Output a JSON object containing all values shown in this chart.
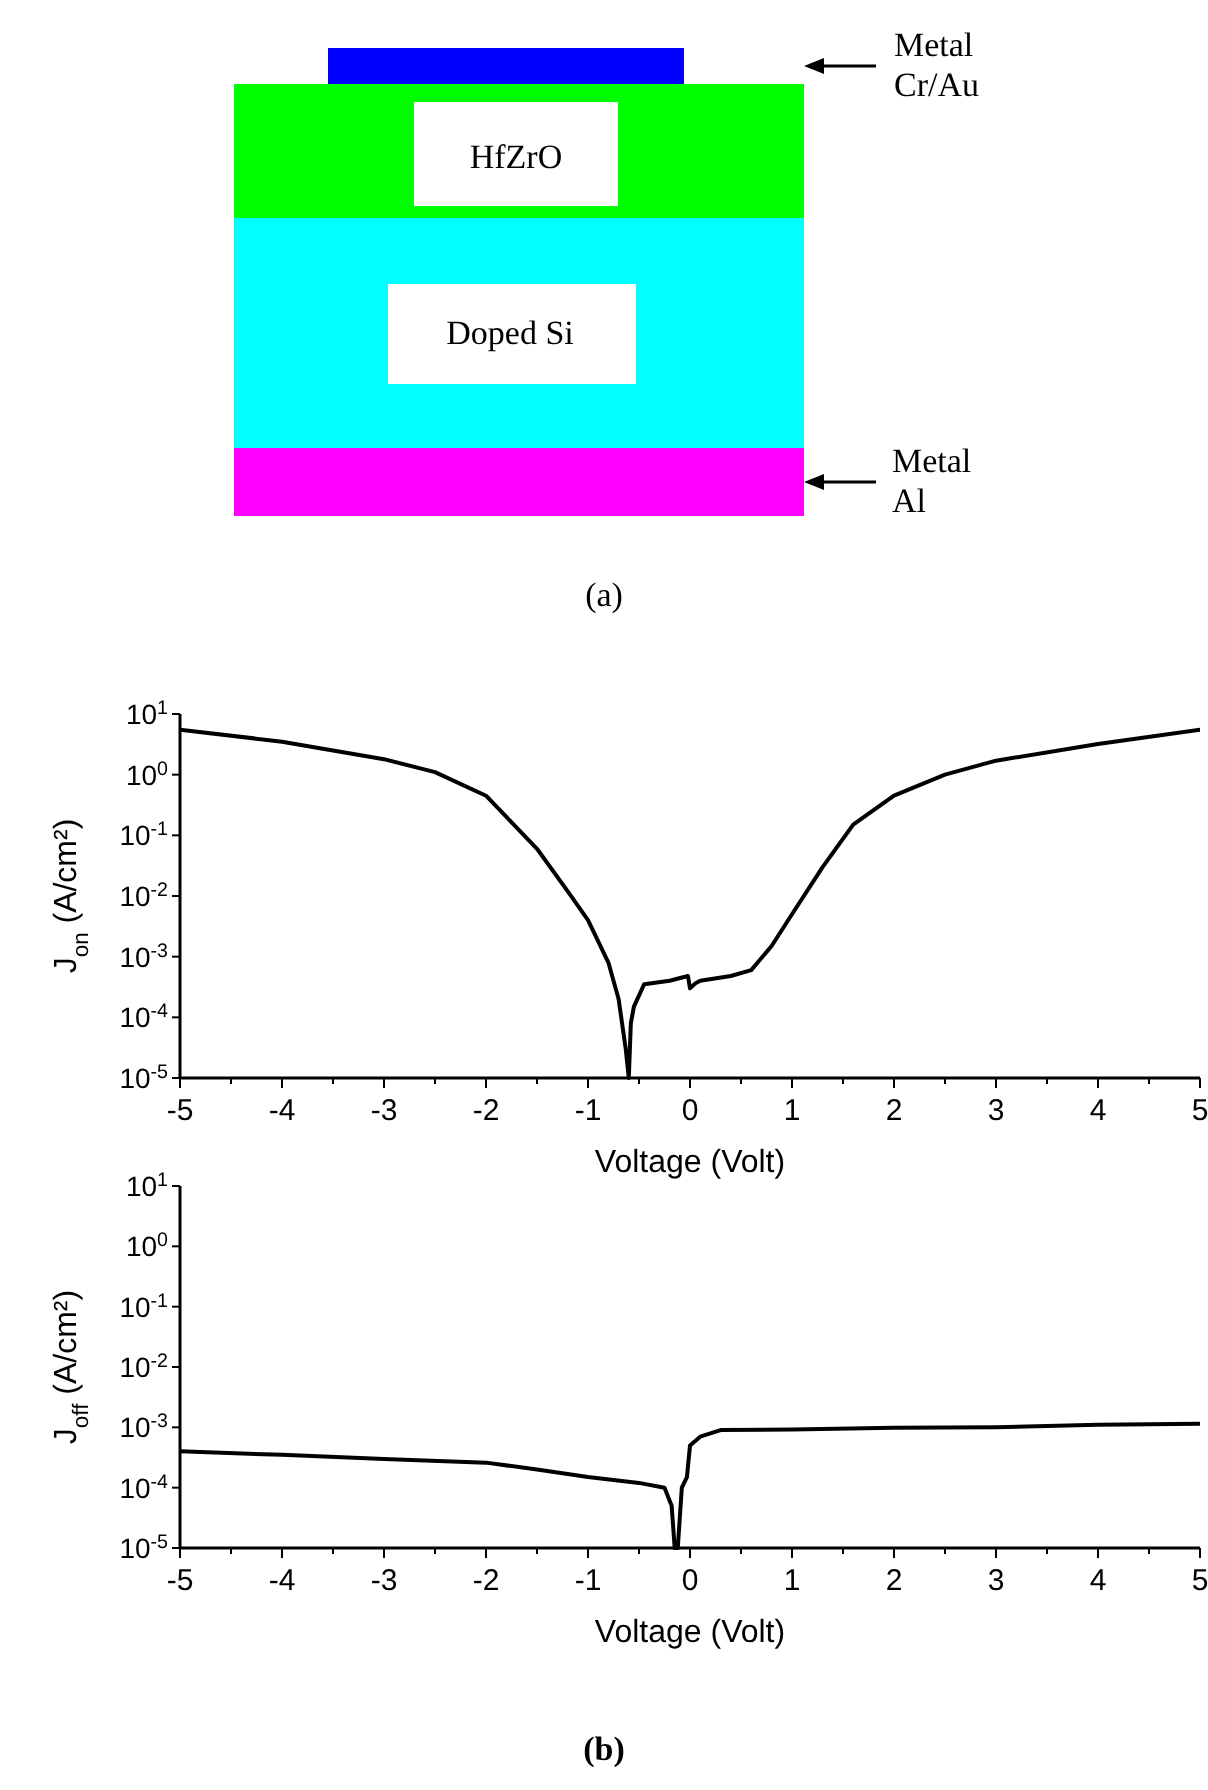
{
  "chart_data": [
    {
      "type": "other",
      "annotations": [
        "HfZrO",
        "Doped Si",
        "Metal Cr/Au",
        "Metal Al",
        "(a)"
      ]
    },
    {
      "type": "line",
      "xlabel": "Voltage (Volt)",
      "ylabel": "J$_{on}$ (A/cm²)",
      "log": "y",
      "color": "#000000",
      "x": [
        -5,
        -4,
        -3,
        -2.5,
        -2,
        -1.5,
        -1.2,
        -1,
        -0.8,
        -0.7,
        -0.63,
        -0.6,
        -0.58,
        -0.55,
        -0.45,
        -0.2,
        -0.02,
        0,
        0.05,
        0.1,
        0.4,
        0.6,
        0.8,
        1,
        1.3,
        1.6,
        2,
        2.5,
        3,
        4,
        5
      ],
      "values": [
        5.5,
        3.5,
        1.8,
        1.1,
        0.45,
        0.06,
        0.012,
        0.004,
        0.0008,
        0.0002,
        3e-05,
        1e-05,
        8e-05,
        0.00015,
        0.00035,
        0.0004,
        0.00048,
        0.0003,
        0.00036,
        0.0004,
        0.00048,
        0.0006,
        0.0015,
        0.005,
        0.03,
        0.15,
        0.45,
        1.0,
        1.7,
        3.2,
        5.5
      ],
      "xlim": [
        -5,
        5
      ],
      "ylim": [
        1e-05,
        10
      ],
      "xticks": [
        -5,
        {
          "value": -4.5,
          "label": null
        },
        -4,
        {
          "value": -3.5,
          "label": null
        },
        -3,
        {
          "value": -2.5,
          "label": null
        },
        -2,
        {
          "value": -1.5,
          "label": null
        },
        -1,
        {
          "value": -0.5,
          "label": null
        },
        0,
        {
          "value": 0.5,
          "label": null
        },
        1,
        {
          "value": 1.5,
          "label": null
        },
        2,
        {
          "value": 2.5,
          "label": null
        },
        3,
        {
          "value": 3.5,
          "label": null
        },
        4,
        {
          "value": 4.5,
          "label": null
        },
        5
      ],
      "yticks": [
        {
          "value": 1e-05,
          "label": "10$^{-5}$"
        },
        {
          "value": 0.0001,
          "label": "10$^{-4}$"
        },
        {
          "value": 0.001,
          "label": "10$^{-3}$"
        },
        {
          "value": 0.01,
          "label": "10$^{-2}$"
        },
        {
          "value": 0.1,
          "label": "10$^{-1}$"
        },
        {
          "value": 1,
          "label": "10$^{0}$"
        },
        {
          "value": 10,
          "label": "10$^{1}$"
        }
      ]
    },
    {
      "type": "line",
      "xlabel": "Voltage (Volt)",
      "ylabel": "J$_{off}$ (A/cm²)",
      "log": "y",
      "color": "#000000",
      "annotations": [
        "(b)"
      ],
      "x": [
        -5,
        -4,
        -3,
        -2,
        -1.5,
        -1,
        -0.5,
        -0.25,
        -0.18,
        -0.15,
        -0.12,
        -0.08,
        -0.03,
        0,
        0.1,
        0.3,
        1,
        2,
        3,
        4,
        5
      ],
      "values": [
        0.0004,
        0.00035,
        0.0003,
        0.00026,
        0.0002,
        0.00015,
        0.00012,
        0.0001,
        5e-05,
        1e-05,
        1e-05,
        0.0001,
        0.00015,
        0.0005,
        0.0007,
        0.0009,
        0.00092,
        0.00098,
        0.001,
        0.0011,
        0.00115
      ],
      "xlim": [
        -5,
        5
      ],
      "ylim": [
        1e-05,
        10
      ],
      "xticks": [
        -5,
        {
          "value": -4.5,
          "label": null
        },
        -4,
        {
          "value": -3.5,
          "label": null
        },
        -3,
        {
          "value": -2.5,
          "label": null
        },
        -2,
        {
          "value": -1.5,
          "label": null
        },
        -1,
        {
          "value": -0.5,
          "label": null
        },
        0,
        {
          "value": 0.5,
          "label": null
        },
        1,
        {
          "value": 1.5,
          "label": null
        },
        2,
        {
          "value": 2.5,
          "label": null
        },
        3,
        {
          "value": 3.5,
          "label": null
        },
        4,
        {
          "value": 4.5,
          "label": null
        },
        5
      ],
      "yticks": [
        {
          "value": 1e-05,
          "label": "10$^{-5}$"
        },
        {
          "value": 0.0001,
          "label": "10$^{-4}$"
        },
        {
          "value": 0.001,
          "label": "10$^{-3}$"
        },
        {
          "value": 0.01,
          "label": "10$^{-2}$"
        },
        {
          "value": 0.1,
          "label": "10$^{-1}$"
        },
        {
          "value": 1,
          "label": "10$^{0}$"
        },
        {
          "value": 10,
          "label": "10$^{1}$"
        }
      ]
    }
  ]
}
